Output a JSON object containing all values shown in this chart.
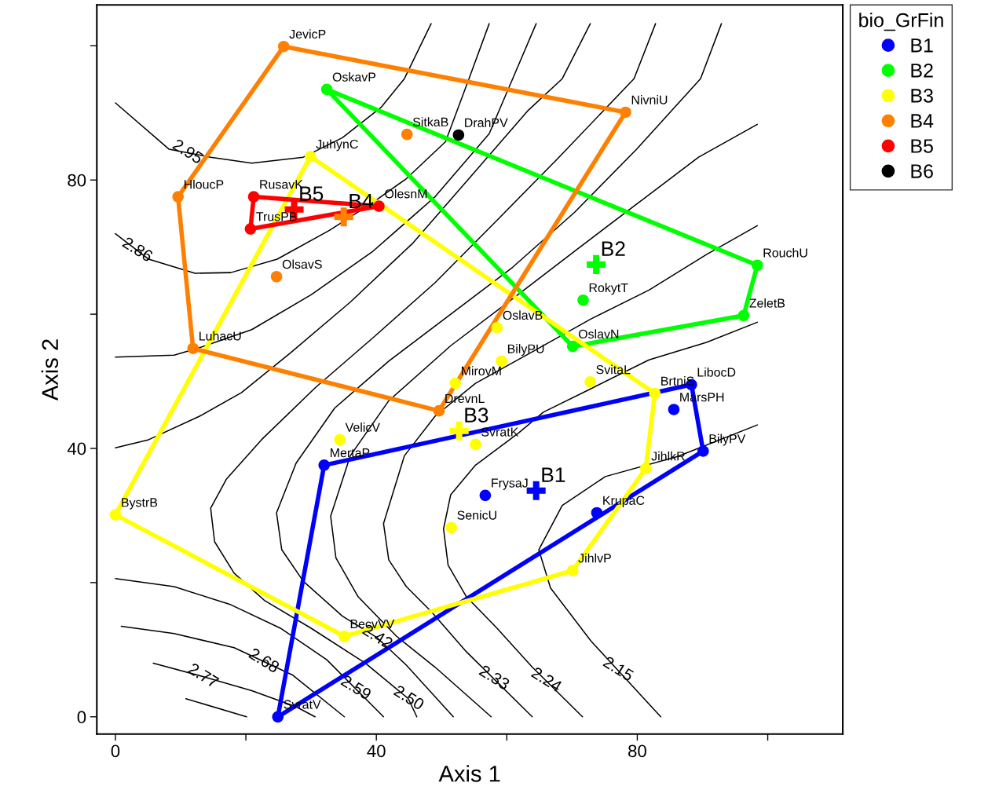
{
  "chart_data": {
    "type": "scatter",
    "xlabel": "Axis 1",
    "ylabel": "Axis 2",
    "legend_title": "bio_GrFin",
    "legend": "right",
    "grid": false,
    "xlim": [
      -2.85,
      111.5
    ],
    "ylim": [
      -2.57,
      106.1
    ],
    "xticks": [
      0,
      {
        "value": 20,
        "label": null
      },
      40,
      {
        "value": 60,
        "label": null
      },
      80,
      {
        "value": 100,
        "label": null
      }
    ],
    "yticks": [
      0,
      {
        "value": 20,
        "label": null
      },
      40,
      {
        "value": 60,
        "label": null
      },
      80,
      {
        "value": 100,
        "label": null
      }
    ],
    "series": [
      {
        "type": "line",
        "color": "#000000",
        "marker": "none",
        "x": [
          0,
          8.2,
          14.6,
          20.9,
          28.8,
          34.8,
          40.7,
          44.3,
          48.4
        ],
        "values": [
          91.5,
          84.6,
          83.4,
          82.5,
          83.4,
          86.3,
          90.8,
          95.1,
          103.3
        ]
      },
      {
        "type": "line",
        "color": "#000000",
        "marker": "none",
        "x": [
          0,
          5.1,
          12.2,
          17.7,
          24.8,
          32.8,
          39.1,
          44.6,
          50.6,
          54.2,
          57.3
        ],
        "values": [
          72.0,
          68.2,
          66.1,
          66.2,
          68.2,
          72.5,
          76.4,
          80.2,
          85.7,
          95.1,
          103.3
        ]
      },
      {
        "type": "line",
        "color": "#000000",
        "marker": "none",
        "x": [
          0,
          9.0,
          12.9,
          20.9,
          30.0,
          39.5,
          49.0,
          57.3,
          60.9,
          64.5
        ],
        "values": [
          53.6,
          53.9,
          55.0,
          57.7,
          62.9,
          69.4,
          77.5,
          86.9,
          95.1,
          103.3
        ]
      },
      {
        "type": "line",
        "color": "#000000",
        "marker": "none",
        "x": [
          0,
          5.1,
          12.9,
          19.3,
          26.8,
          36.0,
          45.5,
          55.0,
          63.3,
          68.5,
          72.8
        ],
        "values": [
          40.1,
          41.3,
          44.8,
          48.3,
          54.2,
          61.8,
          70.5,
          81.1,
          90.4,
          95.1,
          103.3
        ]
      },
      {
        "type": "line",
        "color": "#000000",
        "marker": "none",
        "x": [
          82.8,
          79.5,
          68.0,
          58.5,
          49.0,
          39.5,
          30.7,
          22.4,
          17.0,
          14.6,
          15.2,
          18.2,
          22.9,
          30.0,
          38.3,
          44.9,
          46.2
        ],
        "values": [
          103.3,
          95.1,
          83.4,
          74.0,
          64.7,
          56.5,
          49.1,
          41.3,
          35.4,
          31.1,
          26.1,
          21.4,
          17.3,
          13.2,
          8.0,
          2.7,
          0
        ]
      },
      {
        "type": "line",
        "color": "#000000",
        "marker": "none",
        "x": [
          92.9,
          89.7,
          79.9,
          70.4,
          60.9,
          51.4,
          41.9,
          33.6,
          27.7,
          24.7,
          25.5,
          28.8,
          34.8,
          40.1,
          44.6,
          51.8
        ],
        "values": [
          103.3,
          95.1,
          84.6,
          75.2,
          67.0,
          60.0,
          53.0,
          46.0,
          37.8,
          30.4,
          24.9,
          20.2,
          15.0,
          11.8,
          7.7,
          0
        ]
      },
      {
        "type": "line",
        "color": "#000000",
        "marker": "none",
        "x": [
          98.4,
          89.4,
          79.9,
          70.4,
          60.9,
          51.4,
          41.9,
          36.0,
          33.0,
          33.8,
          37.2,
          43.1,
          49.0,
          57.6
        ],
        "values": [
          88.3,
          83.4,
          76.4,
          69.4,
          62.3,
          55.3,
          47.1,
          38.9,
          29.9,
          23.7,
          17.9,
          12.0,
          7.4,
          0
        ]
      },
      {
        "type": "line",
        "color": "#000000",
        "marker": "none",
        "x": [
          98.4,
          90.6,
          81.8,
          72.9,
          64.1,
          55.2,
          49.0,
          44.3,
          41.1,
          41.9,
          44.6,
          48.5,
          53.8,
          63.9
        ],
        "values": [
          73.2,
          68.9,
          63.6,
          59.3,
          54.5,
          49.7,
          44.8,
          38.9,
          28.8,
          23.4,
          19.4,
          15.6,
          9.7,
          0
        ]
      },
      {
        "type": "line",
        "color": "#000000",
        "marker": "none",
        "x": [
          98.4,
          90.6,
          81.8,
          72.9,
          65.6,
          61.8,
          55.2,
          51.4,
          50.3,
          51.0,
          53.8,
          58.5,
          63.9,
          71.6
        ],
        "values": [
          58.8,
          55.8,
          53.2,
          48.9,
          45.4,
          42.3,
          37.5,
          33.1,
          28.0,
          22.6,
          17.9,
          13.2,
          7.4,
          0
        ]
      },
      {
        "type": "line",
        "color": "#000000",
        "marker": "none",
        "x": [
          98.4,
          86.2,
          75.1,
          68.5,
          64.9,
          66.7,
          72.9,
          83.6
        ],
        "values": [
          43.5,
          38.8,
          35.8,
          31.5,
          24.9,
          19.2,
          11.3,
          0
        ]
      },
      {
        "type": "line",
        "color": "#000000",
        "marker": "none",
        "x": [
          0,
          9.0,
          17.7,
          25.3,
          32.4,
          41.1
        ],
        "values": [
          20.6,
          19.4,
          16.7,
          13.2,
          8.5,
          0
        ]
      },
      {
        "type": "line",
        "color": "#000000",
        "marker": "none",
        "x": [
          0.9,
          9.0,
          18.2,
          27.2,
          35.1
        ],
        "values": [
          13.5,
          12.4,
          10.3,
          6.2,
          0
        ]
      },
      {
        "type": "line",
        "color": "#000000",
        "marker": "none",
        "x": [
          5.8,
          13.4,
          20.9,
          27.7,
          30.6
        ],
        "values": [
          8.0,
          6.0,
          3.9,
          1.5,
          0
        ]
      },
      {
        "type": "line",
        "color": "#000000",
        "marker": "none",
        "x": [
          10.8,
          20.1
        ],
        "values": [
          2.7,
          0
        ]
      },
      {
        "type": "line",
        "color": "#0000ff",
        "marker": "none",
        "x": [
          24.9,
          32.0
        ],
        "values": [
          0,
          37.5
        ]
      },
      {
        "type": "line",
        "color": "#0000ff",
        "marker": "none",
        "x": [
          32.0,
          88.3
        ],
        "values": [
          37.5,
          49.5
        ]
      },
      {
        "type": "line",
        "color": "#0000ff",
        "marker": "none",
        "x": [
          88.3,
          90.1
        ],
        "values": [
          49.5,
          39.6
        ]
      },
      {
        "type": "line",
        "color": "#0000ff",
        "marker": "none",
        "x": [
          90.1,
          24.9
        ],
        "values": [
          39.6,
          0
        ]
      },
      {
        "type": "line",
        "color": "#00ff00",
        "marker": "none",
        "x": [
          32.4,
          98.4
        ],
        "values": [
          93.5,
          67.3
        ]
      },
      {
        "type": "line",
        "color": "#00ff00",
        "marker": "none",
        "x": [
          98.4,
          96.3
        ],
        "values": [
          67.3,
          59.8
        ]
      },
      {
        "type": "line",
        "color": "#00ff00",
        "marker": "none",
        "x": [
          96.3,
          70.1
        ],
        "values": [
          59.8,
          55.2
        ]
      },
      {
        "type": "line",
        "color": "#00ff00",
        "marker": "none",
        "x": [
          70.1,
          32.4
        ],
        "values": [
          55.2,
          93.5
        ]
      },
      {
        "type": "line",
        "color": "#ffff00",
        "marker": "none",
        "x": [
          29.9,
          82.7
        ],
        "values": [
          83.5,
          48.2
        ]
      },
      {
        "type": "line",
        "color": "#ffff00",
        "marker": "none",
        "x": [
          82.7,
          81.3
        ],
        "values": [
          48.2,
          37.0
        ]
      },
      {
        "type": "line",
        "color": "#ffff00",
        "marker": "none",
        "x": [
          81.3,
          70.1
        ],
        "values": [
          37.0,
          21.8
        ]
      },
      {
        "type": "line",
        "color": "#ffff00",
        "marker": "none",
        "x": [
          70.1,
          35.1
        ],
        "values": [
          21.8,
          12.0
        ]
      },
      {
        "type": "line",
        "color": "#ffff00",
        "marker": "none",
        "x": [
          35.1,
          0
        ],
        "values": [
          12.0,
          30.1
        ]
      },
      {
        "type": "line",
        "color": "#ffff00",
        "marker": "none",
        "x": [
          0,
          29.9
        ],
        "values": [
          30.1,
          83.5
        ]
      },
      {
        "type": "line",
        "color": "#ff8000",
        "marker": "none",
        "x": [
          25.8,
          78.2
        ],
        "values": [
          99.9,
          90.1
        ]
      },
      {
        "type": "line",
        "color": "#ff8000",
        "marker": "none",
        "x": [
          78.2,
          49.6
        ],
        "values": [
          90.1,
          45.6
        ]
      },
      {
        "type": "line",
        "color": "#ff8000",
        "marker": "none",
        "x": [
          49.6,
          11.9
        ],
        "values": [
          45.6,
          54.9
        ]
      },
      {
        "type": "line",
        "color": "#ff8000",
        "marker": "none",
        "x": [
          11.9,
          9.6
        ],
        "values": [
          54.9,
          77.5
        ]
      },
      {
        "type": "line",
        "color": "#ff8000",
        "marker": "none",
        "x": [
          9.6,
          25.8
        ],
        "values": [
          77.5,
          99.9
        ]
      },
      {
        "type": "line",
        "color": "#ff0000",
        "marker": "none",
        "x": [
          21.2,
          40.4
        ],
        "values": [
          77.5,
          76.1
        ]
      },
      {
        "type": "line",
        "color": "#ff0000",
        "marker": "none",
        "x": [
          40.4,
          20.7
        ],
        "values": [
          76.1,
          72.7
        ]
      },
      {
        "type": "line",
        "color": "#ff0000",
        "marker": "none",
        "x": [
          20.7,
          21.2
        ],
        "values": [
          72.7,
          77.5
        ]
      },
      {
        "name": "B1",
        "color": "#0000ff",
        "marker": "circle",
        "x": [
          24.9,
          32.0,
          88.3,
          90.1,
          73.8,
          85.6,
          56.7
        ],
        "values": [
          0,
          37.5,
          49.5,
          39.6,
          30.4,
          45.8,
          33.0
        ]
      },
      {
        "name": "B2",
        "color": "#00ff00",
        "marker": "circle",
        "x": [
          32.4,
          98.4,
          96.3,
          70.1,
          71.7
        ],
        "values": [
          93.5,
          67.3,
          59.8,
          55.2,
          62.1
        ]
      },
      {
        "name": "B3",
        "color": "#ffff00",
        "marker": "circle",
        "x": [
          29.9,
          82.7,
          81.3,
          70.1,
          35.1,
          0,
          52.1,
          58.5,
          59.2,
          72.8,
          34.4,
          55.2,
          51.5
        ],
        "values": [
          83.5,
          48.2,
          37.0,
          21.8,
          12.0,
          30.1,
          49.7,
          58.0,
          53.0,
          49.9,
          41.3,
          40.6,
          28.2
        ]
      },
      {
        "name": "B4",
        "color": "#ff8000",
        "marker": "circle",
        "x": [
          25.8,
          78.2,
          49.6,
          11.9,
          9.6,
          44.7,
          24.7
        ],
        "values": [
          99.9,
          90.1,
          45.6,
          54.9,
          77.5,
          86.8,
          65.6
        ]
      },
      {
        "name": "B5",
        "color": "#ff0000",
        "marker": "circle",
        "x": [
          21.2,
          40.4,
          20.7
        ],
        "values": [
          77.5,
          76.1,
          72.7
        ]
      },
      {
        "name": "B6",
        "color": "#000000",
        "marker": "circle",
        "x": [
          52.6
        ],
        "values": [
          86.7
        ]
      },
      {
        "marker": "cross",
        "colors": [
          "#0000ff",
          "#00ff00",
          "#ffff00",
          "#ff8000",
          "#ff0000"
        ],
        "x": [
          64.5,
          73.7,
          52.7,
          35.0,
          27.4
        ],
        "values": [
          33.7,
          67.4,
          42.6,
          74.5,
          75.6
        ]
      }
    ],
    "annotations": [
      {
        "text": "2.95",
        "x": 11.0,
        "y": 84.1
      },
      {
        "text": "2.86",
        "x": 3.3,
        "y": 69.5
      },
      {
        "text": "2.77",
        "x": 13.4,
        "y": 6.0
      },
      {
        "text": "2.68",
        "x": 22.7,
        "y": 8.25
      },
      {
        "text": "2.59",
        "x": 36.8,
        "y": 4.2
      },
      {
        "text": "2.50",
        "x": 44.9,
        "y": 2.7
      },
      {
        "text": "2.42",
        "x": 40.1,
        "y": 11.8
      },
      {
        "text": "2.33",
        "x": 58.0,
        "y": 5.7
      },
      {
        "text": "2.24",
        "x": 66.0,
        "y": 5.4
      },
      {
        "text": "2.15",
        "x": 77.0,
        "y": 7.0
      },
      {
        "text": "SvratV",
        "x": 24.9,
        "y": 0
      },
      {
        "text": "MertaP",
        "x": 32.0,
        "y": 37.5
      },
      {
        "text": "LibocD",
        "x": 88.3,
        "y": 49.5
      },
      {
        "text": "BilyPV",
        "x": 90.1,
        "y": 39.6
      },
      {
        "text": "KrupaC",
        "x": 73.8,
        "y": 30.4
      },
      {
        "text": "MarsPH",
        "x": 85.6,
        "y": 45.8
      },
      {
        "text": "FrysaJ",
        "x": 56.7,
        "y": 33.0
      },
      {
        "text": "OskavP",
        "x": 32.4,
        "y": 93.5
      },
      {
        "text": "RouchU",
        "x": 98.4,
        "y": 67.3
      },
      {
        "text": "ZeletB",
        "x": 96.3,
        "y": 59.8
      },
      {
        "text": "OslavN",
        "x": 70.1,
        "y": 55.2
      },
      {
        "text": "RokytT",
        "x": 71.7,
        "y": 62.1
      },
      {
        "text": "JuhynC",
        "x": 29.9,
        "y": 83.5
      },
      {
        "text": "BrtniS",
        "x": 82.7,
        "y": 48.2
      },
      {
        "text": "JihlkR",
        "x": 81.3,
        "y": 37.0
      },
      {
        "text": "JihlvP",
        "x": 70.1,
        "y": 21.8
      },
      {
        "text": "BecvVV",
        "x": 35.1,
        "y": 12.0
      },
      {
        "text": "BystrB",
        "x": 0,
        "y": 30.1
      },
      {
        "text": "MirovM",
        "x": 52.1,
        "y": 49.7
      },
      {
        "text": "OslavB",
        "x": 58.5,
        "y": 58.0
      },
      {
        "text": "BilyPU",
        "x": 59.2,
        "y": 53.0
      },
      {
        "text": "SvitaL",
        "x": 72.8,
        "y": 49.9
      },
      {
        "text": "VelicV",
        "x": 34.4,
        "y": 41.3
      },
      {
        "text": "SvratK",
        "x": 55.2,
        "y": 40.6
      },
      {
        "text": "SenicU",
        "x": 51.5,
        "y": 28.2
      },
      {
        "text": "JevicP",
        "x": 25.8,
        "y": 99.9
      },
      {
        "text": "NivniU",
        "x": 78.2,
        "y": 90.1
      },
      {
        "text": "DrevnL",
        "x": 49.6,
        "y": 45.6
      },
      {
        "text": "LuhacU",
        "x": 11.9,
        "y": 54.9
      },
      {
        "text": "HloucP",
        "x": 9.6,
        "y": 77.5
      },
      {
        "text": "SitkaB",
        "x": 44.7,
        "y": 86.8
      },
      {
        "text": "OlsavS",
        "x": 24.7,
        "y": 65.6
      },
      {
        "text": "RusavK",
        "x": 21.2,
        "y": 77.5
      },
      {
        "text": "OlesnM",
        "x": 40.4,
        "y": 76.1
      },
      {
        "text": "TrusPB",
        "x": 20.7,
        "y": 72.7
      },
      {
        "text": "DrahPV",
        "x": 52.6,
        "y": 86.7
      },
      {
        "text": "B1",
        "x": 64.5,
        "y": 33.7
      },
      {
        "text": "B2",
        "x": 73.7,
        "y": 67.4
      },
      {
        "text": "B3",
        "x": 52.7,
        "y": 42.6
      },
      {
        "text": "B4",
        "x": 35.0,
        "y": 74.5
      },
      {
        "text": "B5",
        "x": 27.4,
        "y": 75.6
      }
    ]
  }
}
